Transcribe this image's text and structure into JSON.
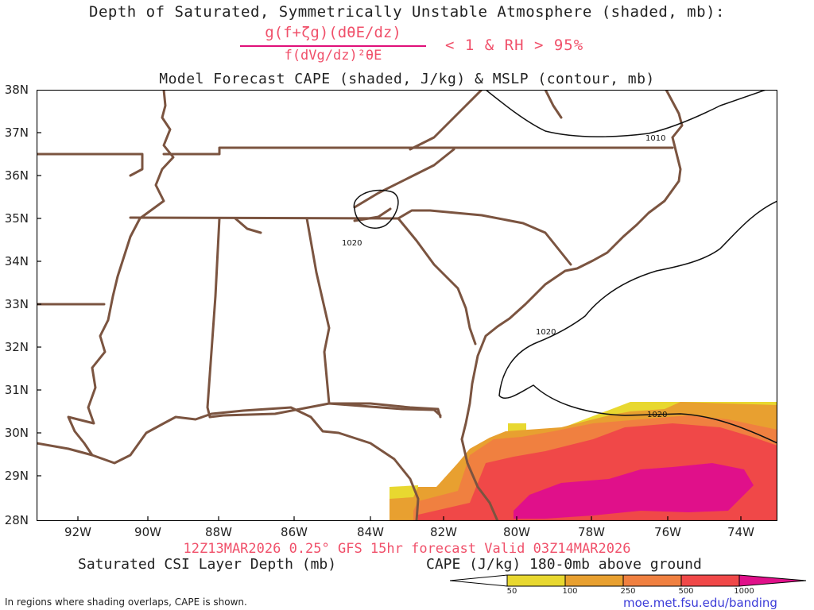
{
  "header": {
    "title": "Depth of Saturated, Symmetrically Unstable Atmosphere (shaded, mb):",
    "equation_numerator": "g(f+ζg)(dθE/dz)",
    "equation_denominator": "f(dVg/dz)²θE",
    "equation_condition": "< 1 & RH > 95%",
    "subtitle": "Model Forecast CAPE (shaded, J/kg) & MSLP (contour, mb)"
  },
  "map": {
    "lat_labels": [
      "38N",
      "37N",
      "36N",
      "35N",
      "34N",
      "33N",
      "32N",
      "31N",
      "30N",
      "29N",
      "28N"
    ],
    "lon_labels": [
      "92W",
      "90W",
      "88W",
      "86W",
      "84W",
      "82W",
      "80W",
      "78W",
      "76W",
      "74W"
    ],
    "contour_labels": [
      "1020",
      "1020",
      "1020",
      "1010"
    ],
    "colors": {
      "border": "#7b5440",
      "cape_50": "#e8d830",
      "cape_100": "#e8a030",
      "cape_250": "#f08040",
      "cape_500": "#f04848",
      "cape_1000": "#e0108a"
    }
  },
  "footer": {
    "valid": "12Z13MAR2026 0.25° GFS 15hr forecast Valid 03Z14MAR2026",
    "csi_label": "Saturated CSI Layer Depth (mb)",
    "cape_label": "CAPE (J/kg) 180-0mb above ground",
    "colorbar_ticks": [
      "50",
      "100",
      "250",
      "500",
      "1000"
    ],
    "note": "In regions where shading overlaps, CAPE is shown.",
    "url": "moe.met.fsu.edu/banding"
  }
}
